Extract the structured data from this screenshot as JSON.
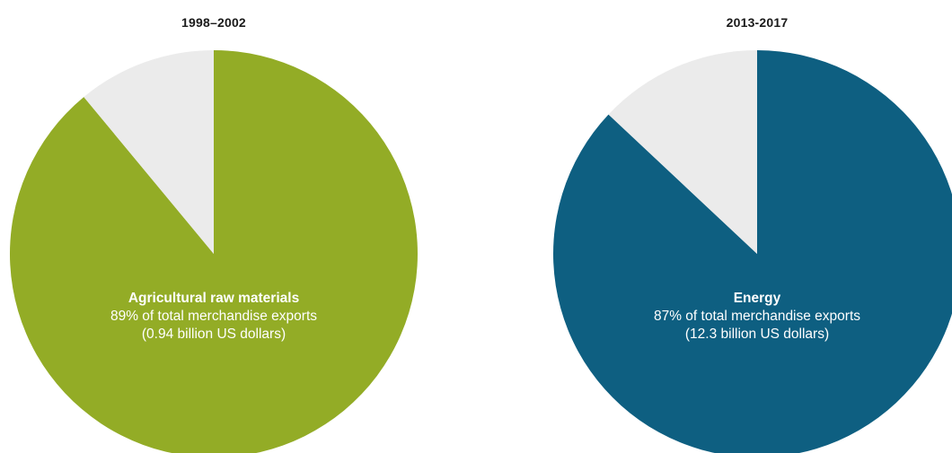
{
  "chart_data": [
    {
      "type": "pie",
      "title": "1998–2002",
      "slices": [
        {
          "name": "Agricultural raw materials",
          "value": 89,
          "color": "#93ac26"
        },
        {
          "name": "",
          "value": 11,
          "color": "#ebebeb"
        }
      ],
      "label": {
        "name": "Agricultural raw materials",
        "line1": "89% of total merchandise exports",
        "line2": "(0.94 billion US dollars)"
      }
    },
    {
      "type": "pie",
      "title": "2013-2017",
      "slices": [
        {
          "name": "Energy",
          "value": 87,
          "color": "#0e5f81"
        },
        {
          "name": "",
          "value": 13,
          "color": "#ebebeb"
        }
      ],
      "label": {
        "name": "Energy",
        "line1": "87% of total merchandise exports",
        "line2": "(12.3 billion US dollars)"
      }
    }
  ]
}
